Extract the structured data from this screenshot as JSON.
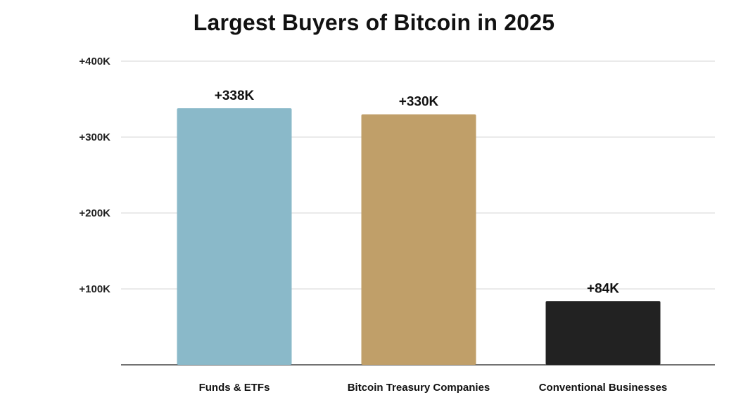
{
  "chart_data": {
    "type": "bar",
    "title": "Largest Buyers of Bitcoin in 2025",
    "xlabel": "",
    "ylabel": "",
    "categories": [
      "Funds & ETFs",
      "Bitcoin Treasury Companies",
      "Conventional Businesses"
    ],
    "values": [
      338000,
      330000,
      84000
    ],
    "data_labels": [
      "+338K",
      "+330K",
      "+84K"
    ],
    "colors": [
      "#8ab9c9",
      "#c09f69",
      "#222222"
    ],
    "ylim": [
      0,
      400000
    ],
    "yticks": [
      100000,
      200000,
      300000,
      400000
    ],
    "ytick_labels": [
      "+100K",
      "+200K",
      "+300K",
      "+400K"
    ],
    "grid": true,
    "legend": "none"
  }
}
